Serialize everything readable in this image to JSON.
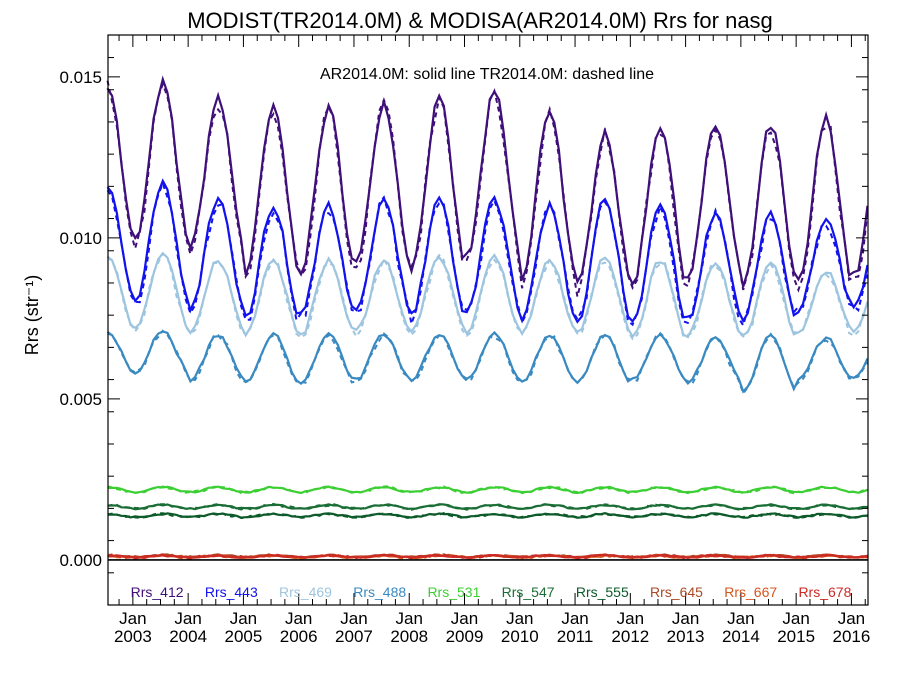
{
  "chart_data": {
    "type": "line",
    "title": "MODIST(TR2014.0M) & MODISA(AR2014.0M)  Rrs for nasg",
    "annotation": "AR2014.0M: solid line   TR2014.0M: dashed line",
    "ylabel": "Rrs (str⁻¹)",
    "xlabel": "",
    "xlim": [
      2002.55,
      2016.3
    ],
    "ylim": [
      -0.0014,
      0.0163
    ],
    "yticks": [
      {
        "value": 0.0,
        "label": "0.000"
      },
      {
        "value": 0.005,
        "label": "0.005"
      },
      {
        "value": 0.01,
        "label": "0.010"
      },
      {
        "value": 0.015,
        "label": "0.015"
      }
    ],
    "xticks": [
      {
        "value": 2003.0,
        "month": "Jan",
        "year": "2003"
      },
      {
        "value": 2004.0,
        "month": "Jan",
        "year": "2004"
      },
      {
        "value": 2005.0,
        "month": "Jan",
        "year": "2005"
      },
      {
        "value": 2006.0,
        "month": "Jan",
        "year": "2006"
      },
      {
        "value": 2007.0,
        "month": "Jan",
        "year": "2007"
      },
      {
        "value": 2008.0,
        "month": "Jan",
        "year": "2008"
      },
      {
        "value": 2009.0,
        "month": "Jan",
        "year": "2009"
      },
      {
        "value": 2010.0,
        "month": "Jan",
        "year": "2010"
      },
      {
        "value": 2011.0,
        "month": "Jan",
        "year": "2011"
      },
      {
        "value": 2012.0,
        "month": "Jan",
        "year": "2012"
      },
      {
        "value": 2013.0,
        "month": "Jan",
        "year": "2013"
      },
      {
        "value": 2014.0,
        "month": "Jan",
        "year": "2014"
      },
      {
        "value": 2015.0,
        "month": "Jan",
        "year": "2015"
      },
      {
        "value": 2016.0,
        "month": "Jan",
        "year": "2016"
      }
    ],
    "zero_line": 0.0,
    "grid": false,
    "legend_placement": "bottom inside plot, single row",
    "series_model": "Monthly values, Jul 2002 - Apr 2016. Values given as seasonal mean and amplitude per band; seasonal maximum near July, minimum near late Dec/Jan. Solid line = AR2014.0M (MODISA), dashed line = TR2014.0M (MODIST), dashed tracking solid closely with small offsets.",
    "series": [
      {
        "name": "Rrs_412",
        "color": "#3f0f7a",
        "mean": 0.0118,
        "amplitude": 0.0022,
        "peak_values": [
          0.0148,
          0.0143,
          0.014,
          0.014,
          0.0142,
          0.0143,
          0.0145,
          0.014,
          0.0133,
          0.0135,
          0.0135,
          0.0135,
          0.0137,
          0.013
        ],
        "trough_values": [
          0.0099,
          0.0097,
          0.0089,
          0.009,
          0.0092,
          0.0091,
          0.0094,
          0.0087,
          0.0085,
          0.0086,
          0.0088,
          0.0085,
          0.0086,
          0.0088
        ]
      },
      {
        "name": "Rrs_443",
        "color": "#1212ef",
        "mean": 0.0095,
        "amplitude": 0.0018,
        "peak_values": [
          0.0117,
          0.0112,
          0.011,
          0.011,
          0.0112,
          0.0112,
          0.0112,
          0.011,
          0.0112,
          0.011,
          0.0108,
          0.0107,
          0.0106,
          0.0104
        ],
        "trough_values": [
          0.008,
          0.0078,
          0.0075,
          0.0076,
          0.0077,
          0.0076,
          0.0077,
          0.0075,
          0.0074,
          0.0074,
          0.0075,
          0.0075,
          0.0078,
          0.0078
        ]
      },
      {
        "name": "Rrs_469",
        "color": "#9ec5e0",
        "mean": 0.0083,
        "amplitude": 0.0011,
        "peak_values": [
          0.0095,
          0.0093,
          0.0093,
          0.0093,
          0.0093,
          0.0094,
          0.0094,
          0.0093,
          0.0094,
          0.0093,
          0.0092,
          0.0092,
          0.009,
          0.0089
        ],
        "trough_values": [
          0.0072,
          0.0071,
          0.007,
          0.007,
          0.0071,
          0.0071,
          0.0071,
          0.0071,
          0.007,
          0.0069,
          0.007,
          0.0069,
          0.0071,
          0.0071
        ]
      },
      {
        "name": "Rrs_488",
        "color": "#3a8ac2",
        "mean": 0.0063,
        "amplitude": 0.0007,
        "peak_values": [
          0.0071,
          0.007,
          0.007,
          0.007,
          0.007,
          0.007,
          0.007,
          0.007,
          0.007,
          0.007,
          0.0069,
          0.007,
          0.0069,
          0.0068
        ],
        "trough_values": [
          0.0058,
          0.0056,
          0.0055,
          0.0055,
          0.0056,
          0.0056,
          0.0056,
          0.0055,
          0.0055,
          0.0056,
          0.0055,
          0.0052,
          0.0056,
          0.0057
        ]
      },
      {
        "name": "Rrs_531",
        "color": "#3ccf33",
        "mean": 0.00218,
        "amplitude": 8e-05
      },
      {
        "name": "Rrs_547",
        "color": "#1a6e35",
        "mean": 0.00165,
        "amplitude": 6e-05
      },
      {
        "name": "Rrs_555",
        "color": "#0d5a2a",
        "mean": 0.00138,
        "amplitude": 5e-05
      },
      {
        "name": "Rrs_645",
        "color": "#a84a25",
        "mean": 0.00012,
        "amplitude": 3e-05
      },
      {
        "name": "Rrs_667",
        "color": "#d6561c",
        "mean": 0.0001,
        "amplitude": 3e-05
      },
      {
        "name": "Rrs_678",
        "color": "#cc2a24",
        "mean": 0.00011,
        "amplitude": 3e-05
      }
    ]
  }
}
